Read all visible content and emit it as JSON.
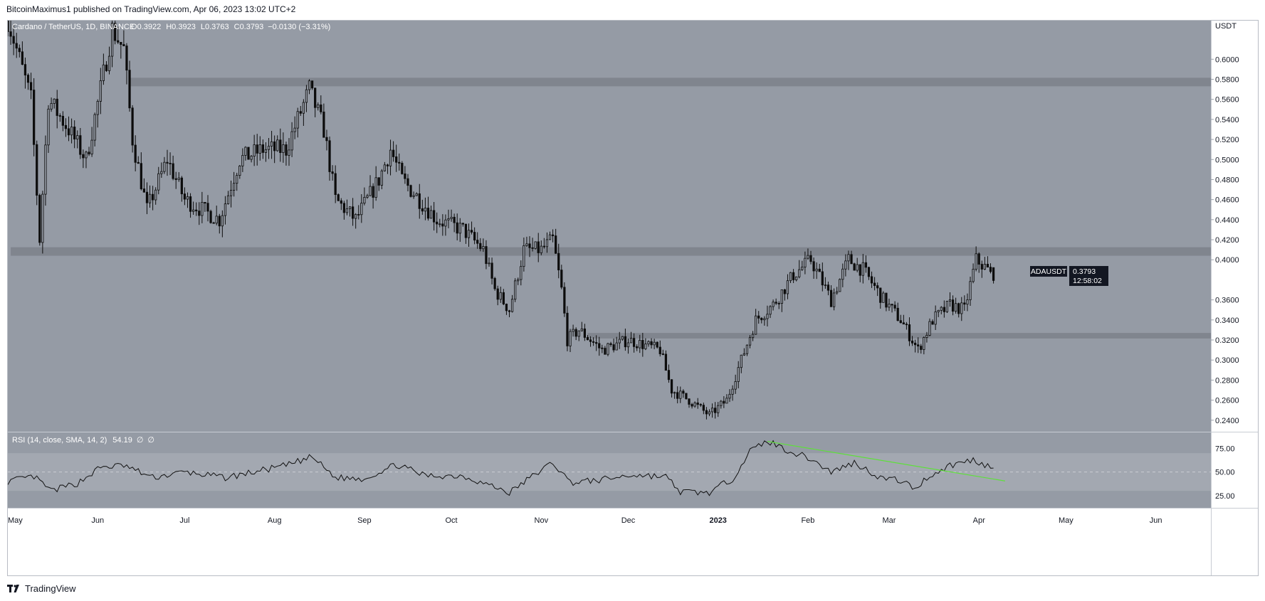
{
  "header": {
    "published_line": "BitcoinMaximus1 published on TradingView.com, Apr 06, 2023 13:02 UTC+2"
  },
  "legend": {
    "symbol": "Cardano / TetherUS, 1D, BINANCE",
    "o_label": "O",
    "o_value": "0.3922",
    "h_label": "H",
    "h_value": "0.3923",
    "l_label": "L",
    "l_value": "0.3763",
    "c_label": "C",
    "c_value": "0.3793",
    "change": "−0.0130 (−3.31%)"
  },
  "rsi_legend": {
    "label": "RSI (14, close, SMA, 14, 2)",
    "value": "54.19",
    "extra1": "∅",
    "extra2": "∅"
  },
  "price_badge": {
    "ticker": "ADAUSDT",
    "price": "0.3793",
    "countdown": "12:58:02"
  },
  "footer": {
    "brand": "TradingView"
  },
  "colors": {
    "chart_bg": "#959ba5",
    "rsi_band": "#a3a8b1",
    "zone": "#7c818a",
    "candle": "#0d0d0d",
    "rsi_line": "#111111",
    "trend_line": "#5ee03a",
    "badge_bg": "#131722"
  },
  "chart_data": {
    "type": "candlestick",
    "title": "Cardano / TetherUS, 1D, BINANCE",
    "axis_unit": "USDT",
    "price_ticks": [
      "0.6000",
      "0.5800",
      "0.5600",
      "0.5400",
      "0.5200",
      "0.5000",
      "0.4800",
      "0.4600",
      "0.4400",
      "0.4200",
      "0.4000",
      "0.3600",
      "0.3400",
      "0.3200",
      "0.3000",
      "0.2800",
      "0.2600",
      "0.2400"
    ],
    "price_range": [
      0.2285,
      0.6385
    ],
    "x_range": [
      "2022-05-01",
      "2023-06-20"
    ],
    "month_labels": [
      {
        "label": "May",
        "date": "2022-05-01"
      },
      {
        "label": "Jun",
        "date": "2022-06-01"
      },
      {
        "label": "Jul",
        "date": "2022-07-01"
      },
      {
        "label": "Aug",
        "date": "2022-08-01"
      },
      {
        "label": "Sep",
        "date": "2022-09-01"
      },
      {
        "label": "Oct",
        "date": "2022-10-01"
      },
      {
        "label": "Nov",
        "date": "2022-11-01"
      },
      {
        "label": "Dec",
        "date": "2022-12-01"
      },
      {
        "label": "2023",
        "date": "2023-01-01"
      },
      {
        "label": "Feb",
        "date": "2023-02-01"
      },
      {
        "label": "Mar",
        "date": "2023-03-01"
      },
      {
        "label": "Apr",
        "date": "2023-04-01"
      },
      {
        "label": "May",
        "date": "2023-05-01"
      },
      {
        "label": "Jun",
        "date": "2023-06-01"
      }
    ],
    "last_date": "2023-04-06",
    "anchors": [
      [
        "2022-05-01",
        0.64
      ],
      [
        "2022-05-09",
        0.56
      ],
      [
        "2022-05-12",
        0.42
      ],
      [
        "2022-05-15",
        0.56
      ],
      [
        "2022-05-22",
        0.53
      ],
      [
        "2022-05-28",
        0.5
      ],
      [
        "2022-06-02",
        0.57
      ],
      [
        "2022-06-06",
        0.63
      ],
      [
        "2022-06-10",
        0.61
      ],
      [
        "2022-06-13",
        0.52
      ],
      [
        "2022-06-18",
        0.45
      ],
      [
        "2022-06-25",
        0.5
      ],
      [
        "2022-07-01",
        0.46
      ],
      [
        "2022-07-13",
        0.44
      ],
      [
        "2022-07-20",
        0.5
      ],
      [
        "2022-07-28",
        0.51
      ],
      [
        "2022-08-05",
        0.51
      ],
      [
        "2022-08-13",
        0.57
      ],
      [
        "2022-08-18",
        0.53
      ],
      [
        "2022-08-22",
        0.46
      ],
      [
        "2022-08-29",
        0.44
      ],
      [
        "2022-09-06",
        0.48
      ],
      [
        "2022-09-10",
        0.51
      ],
      [
        "2022-09-14",
        0.48
      ],
      [
        "2022-09-20",
        0.46
      ],
      [
        "2022-09-26",
        0.44
      ],
      [
        "2022-10-05",
        0.43
      ],
      [
        "2022-10-12",
        0.41
      ],
      [
        "2022-10-16",
        0.37
      ],
      [
        "2022-10-21",
        0.35
      ],
      [
        "2022-10-26",
        0.41
      ],
      [
        "2022-11-01",
        0.41
      ],
      [
        "2022-11-05",
        0.42
      ],
      [
        "2022-11-08",
        0.37
      ],
      [
        "2022-11-10",
        0.32
      ],
      [
        "2022-11-14",
        0.33
      ],
      [
        "2022-11-22",
        0.31
      ],
      [
        "2022-12-01",
        0.32
      ],
      [
        "2022-12-12",
        0.31
      ],
      [
        "2022-12-16",
        0.27
      ],
      [
        "2022-12-22",
        0.26
      ],
      [
        "2022-12-29",
        0.245
      ],
      [
        "2023-01-04",
        0.26
      ],
      [
        "2023-01-09",
        0.3
      ],
      [
        "2023-01-14",
        0.34
      ],
      [
        "2023-01-20",
        0.355
      ],
      [
        "2023-01-27",
        0.385
      ],
      [
        "2023-02-02",
        0.4
      ],
      [
        "2023-02-09",
        0.36
      ],
      [
        "2023-02-15",
        0.4
      ],
      [
        "2023-02-20",
        0.39
      ],
      [
        "2023-02-27",
        0.36
      ],
      [
        "2023-03-05",
        0.34
      ],
      [
        "2023-03-11",
        0.31
      ],
      [
        "2023-03-16",
        0.34
      ],
      [
        "2023-03-22",
        0.355
      ],
      [
        "2023-03-27",
        0.35
      ],
      [
        "2023-03-31",
        0.4
      ],
      [
        "2023-04-04",
        0.39
      ],
      [
        "2023-04-06",
        0.3793
      ]
    ],
    "zones": [
      {
        "from": "2022-06-12",
        "to": "2023-06-20",
        "low": 0.573,
        "high": 0.5815
      },
      {
        "from": "2022-05-02",
        "to": "2023-06-20",
        "low": 0.404,
        "high": 0.4125
      },
      {
        "from": "2022-11-17",
        "to": "2023-06-20",
        "low": 0.3215,
        "high": 0.327
      }
    ],
    "last_bar": {
      "open": 0.3922,
      "high": 0.3923,
      "low": 0.3763,
      "close": 0.3793
    },
    "rsi": {
      "period": 14,
      "ticks": [
        "75.00",
        "50.00",
        "25.00"
      ],
      "range": [
        12,
        92
      ],
      "band": [
        30,
        70
      ],
      "midline": 50,
      "last_value": 54.19,
      "anchors": [
        [
          "2022-05-01",
          40
        ],
        [
          "2022-05-10",
          45
        ],
        [
          "2022-05-16",
          30
        ],
        [
          "2022-05-25",
          38
        ],
        [
          "2022-06-02",
          55
        ],
        [
          "2022-06-10",
          57
        ],
        [
          "2022-06-20",
          44
        ],
        [
          "2022-07-01",
          50
        ],
        [
          "2022-07-15",
          44
        ],
        [
          "2022-07-25",
          50
        ],
        [
          "2022-08-05",
          57
        ],
        [
          "2022-08-14",
          66
        ],
        [
          "2022-08-22",
          44
        ],
        [
          "2022-09-01",
          43
        ],
        [
          "2022-09-12",
          58
        ],
        [
          "2022-09-22",
          46
        ],
        [
          "2022-10-05",
          46
        ],
        [
          "2022-10-16",
          34
        ],
        [
          "2022-10-21",
          28
        ],
        [
          "2022-10-30",
          48
        ],
        [
          "2022-11-05",
          60
        ],
        [
          "2022-11-11",
          39
        ],
        [
          "2022-11-20",
          41
        ],
        [
          "2022-12-03",
          47
        ],
        [
          "2022-12-14",
          45
        ],
        [
          "2022-12-19",
          29
        ],
        [
          "2022-12-29",
          28
        ],
        [
          "2023-01-06",
          43
        ],
        [
          "2023-01-12",
          72
        ],
        [
          "2023-01-18",
          83
        ],
        [
          "2023-01-25",
          73
        ],
        [
          "2023-02-02",
          64
        ],
        [
          "2023-02-09",
          50
        ],
        [
          "2023-02-17",
          60
        ],
        [
          "2023-02-26",
          44
        ],
        [
          "2023-03-05",
          41
        ],
        [
          "2023-03-10",
          32
        ],
        [
          "2023-03-14",
          44
        ],
        [
          "2023-03-22",
          57
        ],
        [
          "2023-03-30",
          63
        ],
        [
          "2023-04-06",
          54.19
        ]
      ],
      "trendline": [
        [
          "2023-01-18",
          82.5
        ],
        [
          "2023-04-10",
          40.5
        ]
      ]
    }
  }
}
